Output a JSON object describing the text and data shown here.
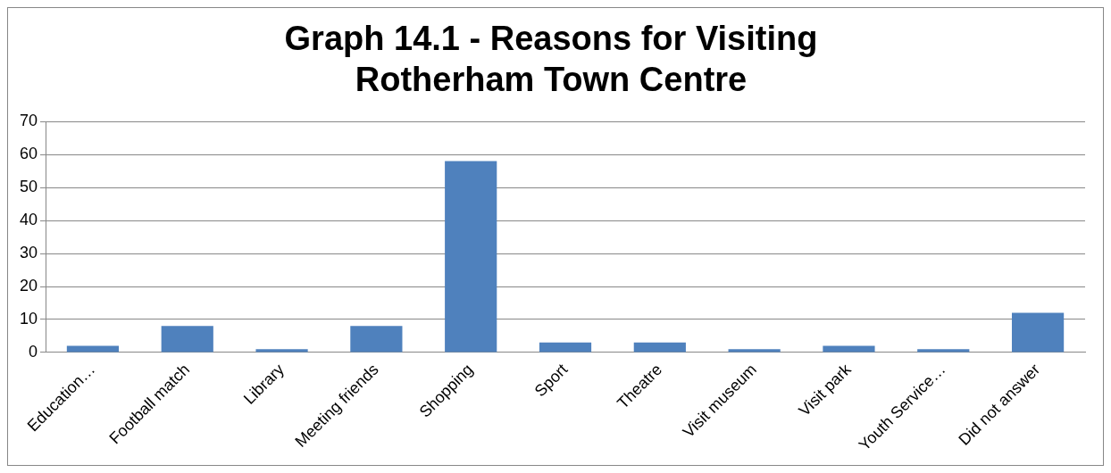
{
  "chart_data": {
    "type": "bar",
    "title": "Graph 14.1 - Reasons for Visiting Rotherham Town Centre",
    "categories": [
      "Education…",
      "Football match",
      "Library",
      "Meeting friends",
      "Shopping",
      "Sport",
      "Theatre",
      "Visit museum",
      "Visit park",
      "Youth Service…",
      "Did not answer"
    ],
    "values": [
      2,
      8,
      1,
      8,
      58,
      3,
      3,
      1,
      2,
      1,
      12
    ],
    "color": "#4f81bd",
    "ylim": [
      0,
      70
    ],
    "yticks": [
      0,
      10,
      20,
      30,
      40,
      50,
      60,
      70
    ],
    "grid": "y",
    "legend": false
  }
}
